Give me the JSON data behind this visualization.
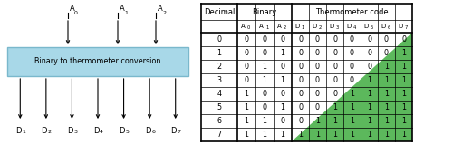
{
  "box_label": "Binary to thermometer conversion",
  "box_color": "#a8d8e8",
  "box_edge_color": "#7ab8cc",
  "binary_cols": {
    "A0": [
      0,
      0,
      0,
      0,
      1,
      1,
      1,
      1
    ],
    "A1": [
      0,
      0,
      1,
      1,
      0,
      0,
      1,
      1
    ],
    "A2": [
      0,
      1,
      0,
      1,
      0,
      1,
      0,
      1
    ]
  },
  "thermo_cols": {
    "D1": [
      0,
      0,
      0,
      0,
      0,
      0,
      0,
      1
    ],
    "D2": [
      0,
      0,
      0,
      0,
      0,
      0,
      1,
      1
    ],
    "D3": [
      0,
      0,
      0,
      0,
      0,
      1,
      1,
      1
    ],
    "D4": [
      0,
      0,
      0,
      0,
      1,
      1,
      1,
      1
    ],
    "D5": [
      0,
      0,
      0,
      1,
      1,
      1,
      1,
      1
    ],
    "D6": [
      0,
      0,
      1,
      1,
      1,
      1,
      1,
      1
    ],
    "D7": [
      0,
      1,
      1,
      1,
      1,
      1,
      1,
      1
    ]
  },
  "green_color": "#5cb85c",
  "arrow_color": "#555555",
  "text_color": "#333333"
}
